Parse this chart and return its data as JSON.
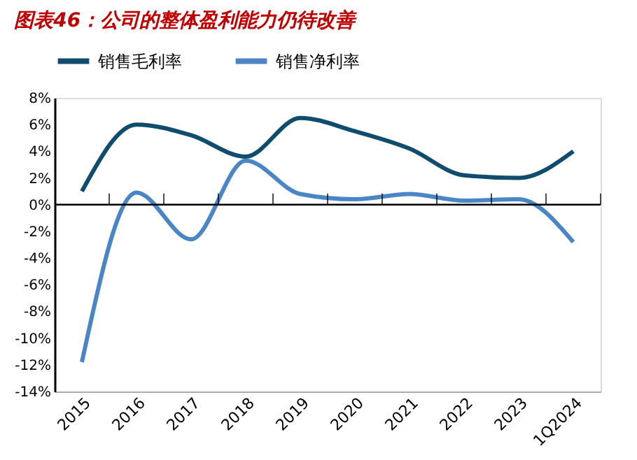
{
  "chart_data": {
    "type": "line",
    "title": "图表46：公司的整体盈利能力仍待改善",
    "categories": [
      "2015",
      "2016",
      "2017",
      "2018",
      "2019",
      "2020",
      "2021",
      "2022",
      "2023",
      "1Q2024"
    ],
    "series": [
      {
        "name": "销售毛利率",
        "color": "#0f4c6e",
        "values": [
          1.0,
          6.0,
          5.2,
          3.6,
          6.5,
          5.5,
          4.2,
          2.2,
          2.0,
          4.0
        ]
      },
      {
        "name": "销售净利率",
        "color": "#4a86c5",
        "values": [
          -11.8,
          0.9,
          -2.6,
          3.3,
          0.8,
          0.4,
          0.8,
          0.3,
          0.4,
          -2.8
        ]
      }
    ],
    "ylim": [
      -14,
      8
    ],
    "yticks": [
      {
        "value": -14,
        "label": "-14%"
      },
      {
        "value": -12,
        "label": "-12%"
      },
      {
        "value": -10,
        "label": "-10%"
      },
      {
        "value": -8,
        "label": "-8%"
      },
      {
        "value": -6,
        "label": "-6%"
      },
      {
        "value": -4,
        "label": "-4%"
      },
      {
        "value": -2,
        "label": "-2%"
      },
      {
        "value": 0,
        "label": "0%"
      },
      {
        "value": 2,
        "label": "2%"
      },
      {
        "value": 4,
        "label": "4%"
      },
      {
        "value": 6,
        "label": "6%"
      },
      {
        "value": 8,
        "label": "8%"
      }
    ],
    "ref_lines": [
      {
        "axis": "y",
        "value": 0,
        "color": "#000000"
      }
    ],
    "legend": "top",
    "grid": false,
    "marker": "none",
    "line_style": "solid"
  }
}
